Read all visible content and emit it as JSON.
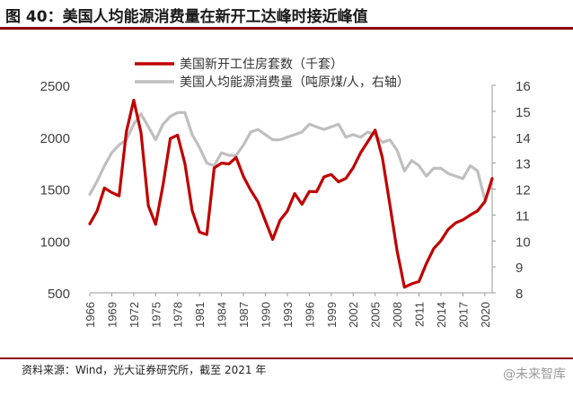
{
  "figure": {
    "title": "图 40：美国人均能源消费量在新开工达峰时接近峰值",
    "source": "资料来源：Wind，光大证券研究所，截至 2021 年",
    "watermark": "@未来智库"
  },
  "colors": {
    "red_series": "#c00000",
    "gray_series": "#bfbfbf",
    "title_rule": "#8b0000"
  },
  "chart_data": {
    "type": "line",
    "legend_position": "top-center",
    "grid": false,
    "x_ticks": [
      "1966",
      "1969",
      "1972",
      "1975",
      "1978",
      "1981",
      "1984",
      "1987",
      "1990",
      "1993",
      "1996",
      "1999",
      "2002",
      "2005",
      "2008",
      "2011",
      "2014",
      "2017",
      "2020"
    ],
    "left_axis": {
      "ylim": [
        500,
        2500
      ],
      "ticks": [
        "500",
        "1000",
        "1500",
        "2000",
        "2500"
      ]
    },
    "right_axis": {
      "ylim": [
        8,
        16
      ],
      "ticks": [
        "8",
        "9",
        "10",
        "11",
        "12",
        "13",
        "14",
        "15",
        "16"
      ]
    },
    "series": [
      {
        "name": "美国新开工住房套数（千套）",
        "axis": "left",
        "x": [
          1966,
          1967,
          1968,
          1969,
          1970,
          1971,
          1972,
          1973,
          1974,
          1975,
          1976,
          1977,
          1978,
          1979,
          1980,
          1981,
          1982,
          1983,
          1984,
          1985,
          1986,
          1987,
          1988,
          1989,
          1990,
          1991,
          1992,
          1993,
          1994,
          1995,
          1996,
          1997,
          1998,
          1999,
          2000,
          2001,
          2002,
          2003,
          2004,
          2005,
          2006,
          2007,
          2008,
          2009,
          2010,
          2011,
          2012,
          2013,
          2014,
          2015,
          2016,
          2017,
          2018,
          2019,
          2020,
          2021
        ],
        "values": [
          1165,
          1290,
          1510,
          1467,
          1434,
          2052,
          2357,
          2045,
          1338,
          1160,
          1538,
          1987,
          2020,
          1745,
          1292,
          1084,
          1062,
          1703,
          1750,
          1742,
          1805,
          1620,
          1488,
          1376,
          1193,
          1014,
          1200,
          1288,
          1457,
          1354,
          1477,
          1474,
          1617,
          1641,
          1569,
          1603,
          1705,
          1848,
          1956,
          2068,
          1801,
          1355,
          906,
          554,
          587,
          609,
          781,
          925,
          1003,
          1112,
          1174,
          1203,
          1250,
          1290,
          1380,
          1601
        ]
      },
      {
        "name": "美国人均能源消费量（吨原煤/人，右轴）",
        "axis": "right",
        "x": [
          1966,
          1967,
          1968,
          1969,
          1970,
          1971,
          1972,
          1973,
          1974,
          1975,
          1976,
          1977,
          1978,
          1979,
          1980,
          1981,
          1982,
          1983,
          1984,
          1985,
          1986,
          1987,
          1988,
          1989,
          1990,
          1991,
          1992,
          1993,
          1994,
          1995,
          1996,
          1997,
          1998,
          1999,
          2000,
          2001,
          2002,
          2003,
          2004,
          2005,
          2006,
          2007,
          2008,
          2009,
          2010,
          2011,
          2012,
          2013,
          2014,
          2015,
          2016,
          2017,
          2018,
          2019,
          2020,
          2021
        ],
        "values": [
          11.8,
          12.3,
          12.9,
          13.4,
          13.7,
          13.9,
          14.5,
          14.9,
          14.4,
          13.9,
          14.5,
          14.8,
          14.95,
          14.95,
          14.1,
          13.6,
          13.0,
          12.9,
          13.4,
          13.3,
          13.3,
          13.7,
          14.2,
          14.3,
          14.1,
          13.9,
          13.9,
          14.0,
          14.1,
          14.2,
          14.5,
          14.4,
          14.3,
          14.4,
          14.5,
          14.0,
          14.1,
          14.0,
          14.2,
          14.1,
          13.8,
          13.9,
          13.5,
          12.7,
          13.1,
          12.9,
          12.5,
          12.8,
          12.8,
          12.6,
          12.5,
          12.4,
          12.9,
          12.7,
          11.6,
          12.2
        ]
      }
    ]
  }
}
